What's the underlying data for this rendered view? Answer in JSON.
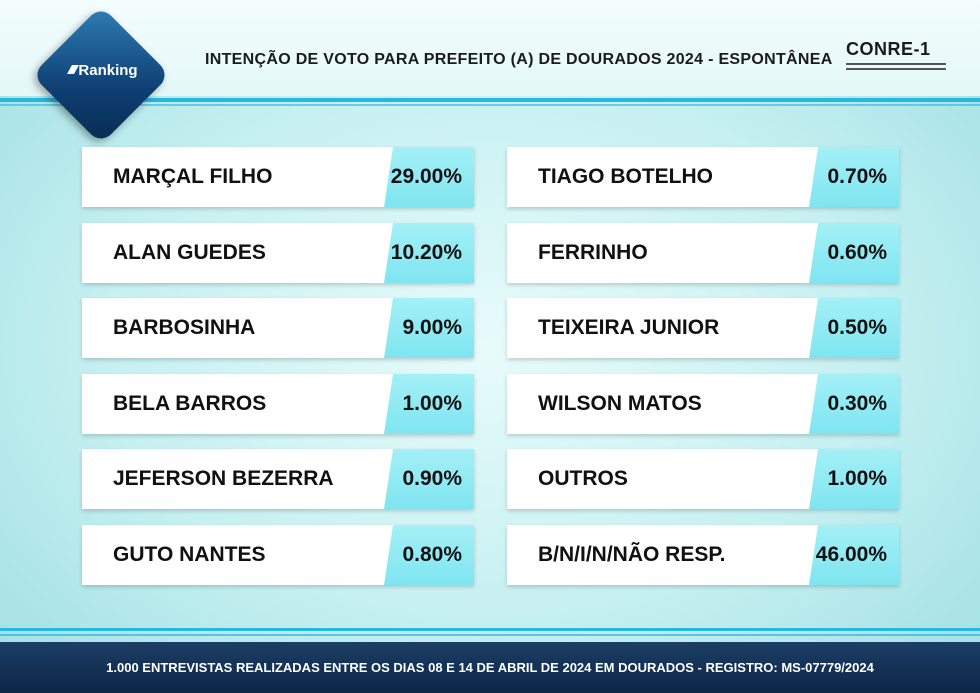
{
  "header": {
    "title": "INTENÇÃO DE VOTO PARA PREFEITO (A) DE DOURADOS 2024 - ESPONTÂNEA",
    "logo_text": "Ranking",
    "org_logo": "CONRE-1"
  },
  "chart_data": {
    "type": "table",
    "title": "INTENÇÃO DE VOTO PARA PREFEITO (A) DE DOURADOS 2024 - ESPONTÂNEA",
    "categories": [
      "MARÇAL FILHO",
      "ALAN GUEDES",
      "BARBOSINHA",
      "BELA BARROS",
      "JEFERSON BEZERRA",
      "GUTO NANTES",
      "TIAGO BOTELHO",
      "FERRINHO",
      "TEIXEIRA JUNIOR",
      "WILSON MATOS",
      "OUTROS",
      "B/N/I/N/NÃO RESP."
    ],
    "values": [
      29.0,
      10.2,
      9.0,
      1.0,
      0.9,
      0.8,
      0.7,
      0.6,
      0.5,
      0.3,
      1.0,
      46.0
    ],
    "labels": [
      "29.00%",
      "10.20%",
      "9.00%",
      "1.00%",
      "0.90%",
      "0.80%",
      "0.70%",
      "0.60%",
      "0.50%",
      "0.30%",
      "1.00%",
      "46.00%"
    ],
    "colors": {
      "value_bg": "#8fe9f3",
      "card_bg": "#ffffff",
      "accent": "#29b6df"
    }
  },
  "footer": {
    "text": "1.000 ENTREVISTAS REALIZADAS ENTRE OS DIAS 08 E 14 DE ABRIL DE 2024 EM DOURADOS - REGISTRO: MS-07779/2024"
  }
}
